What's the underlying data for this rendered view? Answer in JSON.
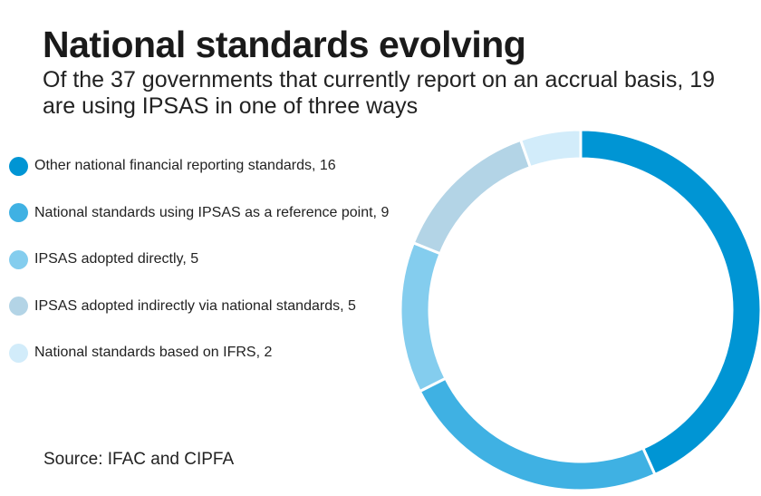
{
  "title": "National standards evolving",
  "subtitle": "Of the 37 governments that currently report on an accrual basis, 19 are using IPSAS in one of three ways",
  "source": "Source: IFAC and CIPFA",
  "chart_data": {
    "type": "pie",
    "variant": "donut",
    "title": "National standards evolving",
    "subtitle": "Of the 37 governments that currently report on an accrual basis, 19 are using IPSAS in one of three ways",
    "legend_position": "left",
    "categories": [
      "Other national financial reporting standards, 16",
      "National standards using IPSAS as a reference point, 9",
      "IPSAS adopted directly, 5",
      "IPSAS adopted indirectly via national standards, 5",
      "National standards based on IFRS, 2"
    ],
    "values": [
      16,
      9,
      5,
      5,
      2
    ],
    "colors": [
      "#0095d4",
      "#3fb1e3",
      "#84cdee",
      "#b3d4e6",
      "#d2ecfa"
    ],
    "total": 37
  }
}
